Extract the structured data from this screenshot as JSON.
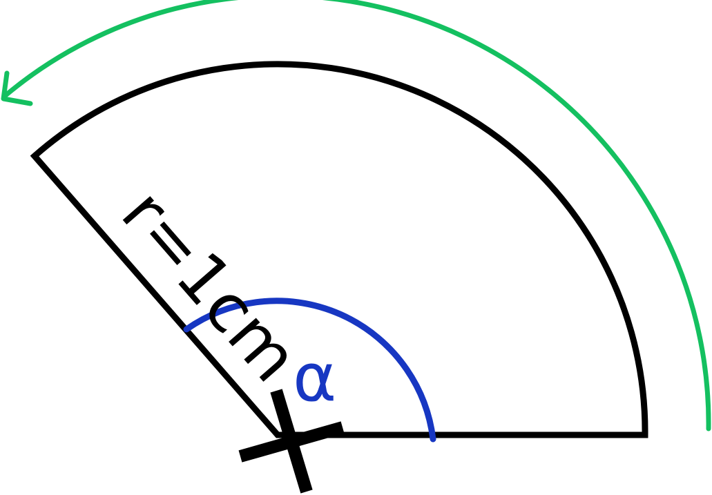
{
  "labels": {
    "radius": "r=1cm",
    "angle": "α"
  },
  "colors": {
    "sector_stroke": "#000000",
    "angle_arc": "#1737c2",
    "rotation_arrow": "#14c060",
    "center_cross": "#000000"
  },
  "icons": {
    "center": "cross-mark-icon",
    "rotation": "counterclockwise-arrow-icon"
  }
}
